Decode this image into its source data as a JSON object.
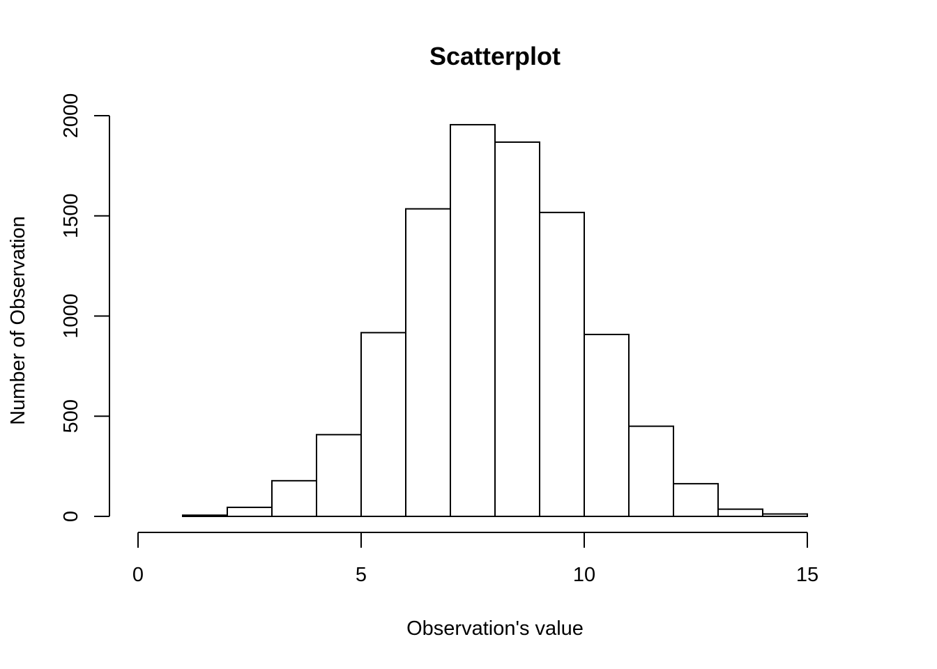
{
  "chart_data": {
    "type": "bar",
    "subtype": "histogram",
    "title": "Scatterplot",
    "xlabel": "Observation's value",
    "ylabel": "Number of Observation",
    "bins": [
      {
        "start": 0,
        "end": 1,
        "count": 0
      },
      {
        "start": 1,
        "end": 2,
        "count": 6
      },
      {
        "start": 2,
        "end": 3,
        "count": 45
      },
      {
        "start": 3,
        "end": 4,
        "count": 178
      },
      {
        "start": 4,
        "end": 5,
        "count": 408
      },
      {
        "start": 5,
        "end": 6,
        "count": 917
      },
      {
        "start": 6,
        "end": 7,
        "count": 1535
      },
      {
        "start": 7,
        "end": 8,
        "count": 1955
      },
      {
        "start": 8,
        "end": 9,
        "count": 1868
      },
      {
        "start": 9,
        "end": 10,
        "count": 1517
      },
      {
        "start": 10,
        "end": 11,
        "count": 908
      },
      {
        "start": 11,
        "end": 12,
        "count": 450
      },
      {
        "start": 12,
        "end": 13,
        "count": 163
      },
      {
        "start": 13,
        "end": 14,
        "count": 36
      },
      {
        "start": 14,
        "end": 15,
        "count": 12
      },
      {
        "start": 15,
        "end": 16,
        "count": 0
      }
    ],
    "xlim": [
      0,
      16
    ],
    "ylim": [
      0,
      2000
    ],
    "x_ticks": [
      0,
      5,
      10,
      15
    ],
    "x_tick_labels": [
      "0",
      "5",
      "10",
      "15"
    ],
    "y_ticks": [
      0,
      500,
      1000,
      1500,
      2000
    ],
    "y_tick_labels": [
      "0",
      "500",
      "1000",
      "1500",
      "2000"
    ],
    "grid": false,
    "legend": "none",
    "colors": {
      "bar_fill": "#ffffff",
      "bar_stroke": "#000000",
      "background": "#ffffff"
    }
  }
}
